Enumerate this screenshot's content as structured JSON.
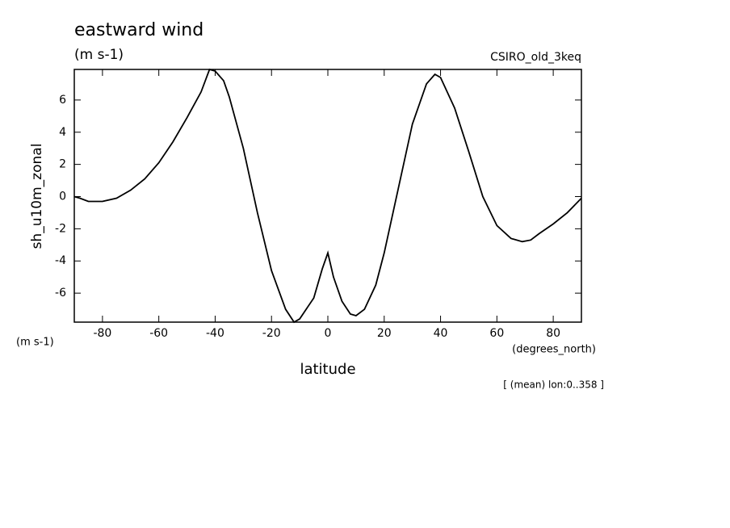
{
  "chart_data": {
    "type": "line",
    "title": "eastward wind",
    "subtitle": "(m s-1)",
    "dataset_label": "CSIRO_old_3keq",
    "y_label": "sh_u10m_zonal",
    "x_label": "latitude",
    "y_units": "(m s-1)",
    "x_units": "(degrees_north)",
    "annotation": "[ (mean) lon:0..358 ]",
    "x": [
      -90,
      -88,
      -85,
      -80,
      -75,
      -70,
      -65,
      -60,
      -55,
      -50,
      -45,
      -42,
      -40,
      -37,
      -35,
      -30,
      -25,
      -20,
      -15,
      -12,
      -10,
      -5,
      -2,
      0,
      2,
      5,
      8,
      10,
      13,
      17,
      20,
      25,
      30,
      35,
      38,
      40,
      45,
      50,
      55,
      60,
      65,
      69,
      72,
      75,
      80,
      85,
      90
    ],
    "series": [
      {
        "color": "#000000",
        "values": [
          0.0,
          -0.1,
          -0.3,
          -0.3,
          -0.1,
          0.4,
          1.1,
          2.1,
          3.4,
          4.9,
          6.5,
          7.9,
          7.8,
          7.2,
          6.2,
          3.0,
          -1.0,
          -4.6,
          -7.0,
          -7.8,
          -7.6,
          -6.3,
          -4.5,
          -3.5,
          -5.0,
          -6.5,
          -7.3,
          -7.4,
          -7.0,
          -5.5,
          -3.5,
          0.5,
          4.5,
          7.0,
          7.6,
          7.4,
          5.5,
          2.8,
          0.0,
          -1.8,
          -2.6,
          -2.8,
          -2.7,
          -2.3,
          -1.7,
          -1.0,
          -0.1
        ]
      }
    ],
    "xlim": [
      -90,
      90
    ],
    "xticks": [
      -80,
      -60,
      -40,
      -20,
      0,
      20,
      40,
      60,
      80
    ],
    "ylim": [
      -7.8,
      7.9
    ],
    "yticks": [
      -6,
      -4,
      -2,
      0,
      2,
      4,
      6
    ]
  }
}
